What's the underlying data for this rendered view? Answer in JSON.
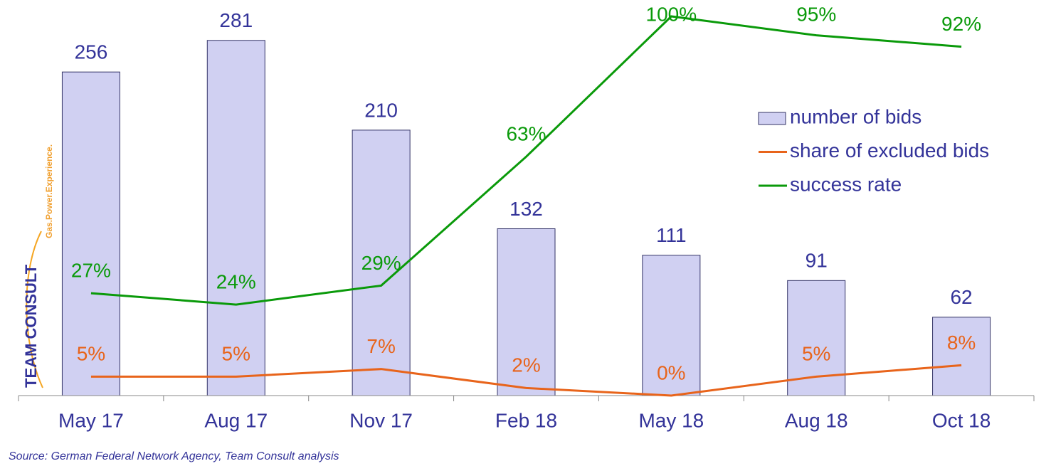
{
  "chart_data": {
    "type": "bar",
    "categories": [
      "May 17",
      "Aug 17",
      "Nov 17",
      "Feb 18",
      "May 18",
      "Aug 18",
      "Oct 18"
    ],
    "series": [
      {
        "name": "number of bids",
        "type": "bar",
        "color": "#d0d0f2",
        "values": [
          256,
          281,
          210,
          132,
          111,
          91,
          62
        ]
      },
      {
        "name": "share of excluded bids",
        "type": "line",
        "axis": "y2",
        "color": "#e8641b",
        "values": [
          5,
          5,
          7,
          2,
          0,
          5,
          8
        ],
        "value_labels": [
          "5%",
          "5%",
          "7%",
          "2%",
          "0%",
          "5%",
          "8%"
        ]
      },
      {
        "name": "success rate",
        "type": "line",
        "axis": "y2",
        "color": "#0a9a0a",
        "values": [
          27,
          24,
          29,
          63,
          100,
          95,
          92
        ],
        "value_labels": [
          "27%",
          "24%",
          "29%",
          "63%",
          "100%",
          "95%",
          "92%"
        ]
      }
    ],
    "ylim": [
      0,
      300
    ],
    "y2lim": [
      0,
      100
    ],
    "legend": "right",
    "source": "Source: German Federal Network Agency, Team Consult analysis",
    "logo": {
      "name": "TEAM CONSULT",
      "tagline": "Gas.Power.Experience."
    }
  }
}
